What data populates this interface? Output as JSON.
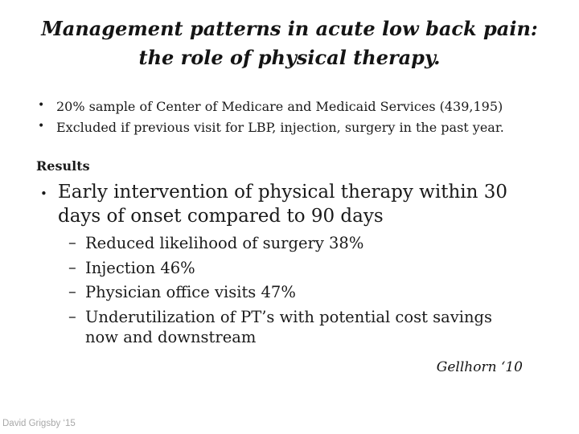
{
  "slide": {
    "title": {
      "line1": "Management patterns in acute low back pain:",
      "line2": "the role of physical therapy."
    },
    "bullet_char": "•",
    "dash_char": "–",
    "bullets": [
      "20% sample of Center of Medicare and Medicaid Services (439,195)",
      "Excluded if previous visit for LBP, injection, surgery in the past year."
    ],
    "results_heading": "Results",
    "main_bullet": {
      "line1": "Early intervention of physical therapy within 30",
      "line2": "days of onset compared to 90 days"
    },
    "sub_bullets": [
      {
        "line1": "Reduced likelihood of surgery 38%"
      },
      {
        "line1": "Injection 46%"
      },
      {
        "line1": "Physician office visits 47%"
      },
      {
        "line1": "Underutilization of PT’s with potential cost savings",
        "line2": "now and downstream"
      }
    ],
    "citation": "Gellhorn ‘10",
    "footer": "David Grigsby ‘15"
  },
  "colors": {
    "text": "#1a1a1a",
    "footer": "#a8a8a8",
    "background": "#ffffff"
  }
}
